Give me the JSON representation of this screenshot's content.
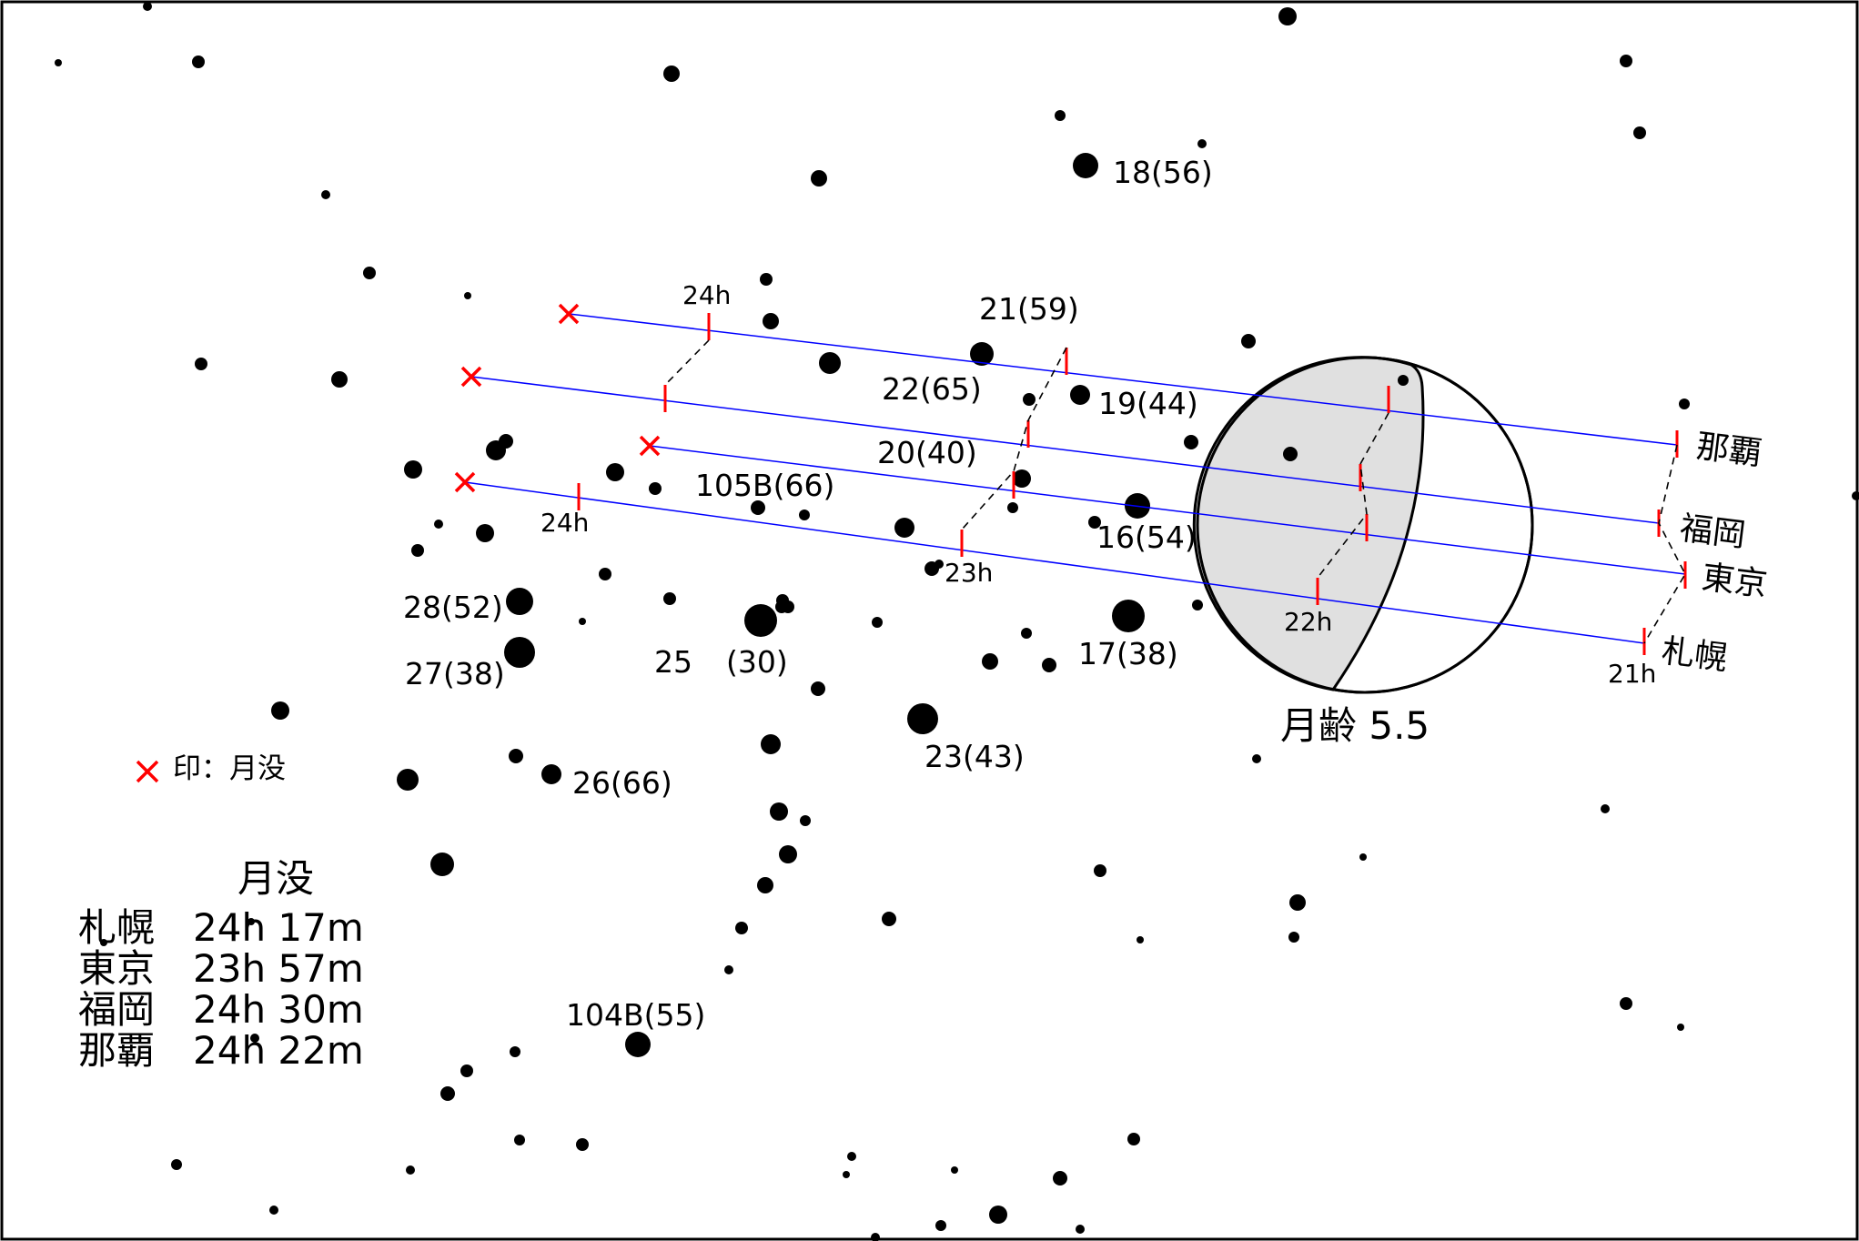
{
  "colors": {
    "track": "#0000ff",
    "tick": "#ff0000",
    "moonset_mark": "#ff0000",
    "moon_shadow": "#e0e0e0",
    "stars": "#000000"
  },
  "star_labels": [
    {
      "id": "18",
      "text": "18(56)"
    },
    {
      "id": "21",
      "text": "21(59)"
    },
    {
      "id": "22",
      "text": "22(65)"
    },
    {
      "id": "19",
      "text": "19(44)"
    },
    {
      "id": "20",
      "text": "20(40)"
    },
    {
      "id": "105B",
      "text": "105B(66)"
    },
    {
      "id": "16",
      "text": "16(54)"
    },
    {
      "id": "28",
      "text": "28(52)"
    },
    {
      "id": "27",
      "text": "27(38)"
    },
    {
      "id": "25a",
      "text": "25"
    },
    {
      "id": "25b",
      "text": "(30)"
    },
    {
      "id": "17",
      "text": "17(38)"
    },
    {
      "id": "23",
      "text": "23(43)"
    },
    {
      "id": "26",
      "text": "26(66)"
    },
    {
      "id": "104B",
      "text": "104B(55)"
    }
  ],
  "hour_labels": {
    "h24_top": "24h",
    "h24_left": "24h",
    "h23": "23h",
    "h22": "22h",
    "h21": "21h"
  },
  "cities": {
    "naha": "那覇",
    "fukuoka": "福岡",
    "tokyo": "東京",
    "sapporo": "札幌"
  },
  "moon": {
    "age_label": "月齢 5.5"
  },
  "legend": {
    "mark_text": "印：月没"
  },
  "moonset_table": {
    "title": "月没",
    "rows": [
      {
        "city": "札幌",
        "time": "24h 17m"
      },
      {
        "city": "東京",
        "time": "23h 57m"
      },
      {
        "city": "福岡",
        "time": "24h 30m"
      },
      {
        "city": "那覇",
        "time": "24h 22m"
      }
    ]
  }
}
